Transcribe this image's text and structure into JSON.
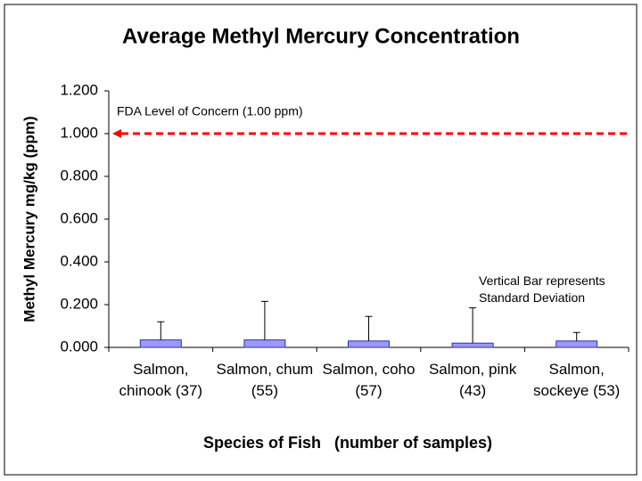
{
  "chart_data": {
    "type": "bar",
    "title": "Average Methyl Mercury Concentration",
    "x_label": "Species of Fish   (number of samples)",
    "y_label": "Methyl Mercury mg/kg  (ppm)",
    "categories": [
      "Salmon, chinook (37)",
      "Salmon, chum (55)",
      "Salmon, coho (57)",
      "Salmon, pink (43)",
      "Salmon, sockeye (53)"
    ],
    "values": [
      0.035,
      0.035,
      0.03,
      0.02,
      0.03
    ],
    "errors": [
      0.085,
      0.18,
      0.115,
      0.165,
      0.04
    ],
    "color": "#9999ff",
    "ylim": [
      0,
      1.2
    ],
    "yticks": [
      {
        "value": 0,
        "label": "0.000"
      },
      {
        "value": 0.2,
        "label": "0.200"
      },
      {
        "value": 0.4,
        "label": "0.400"
      },
      {
        "value": 0.6,
        "label": "0.600"
      },
      {
        "value": 0.8,
        "label": "0.800"
      },
      {
        "value": 1.0,
        "label": "1.000"
      },
      {
        "value": 1.2,
        "label": "1.200"
      }
    ],
    "reference_line": {
      "value": 1.0,
      "label": "FDA Level of Concern (1.00 ppm)",
      "color": "#ff0000"
    },
    "note": "Vertical Bar represents Standard Deviation"
  }
}
